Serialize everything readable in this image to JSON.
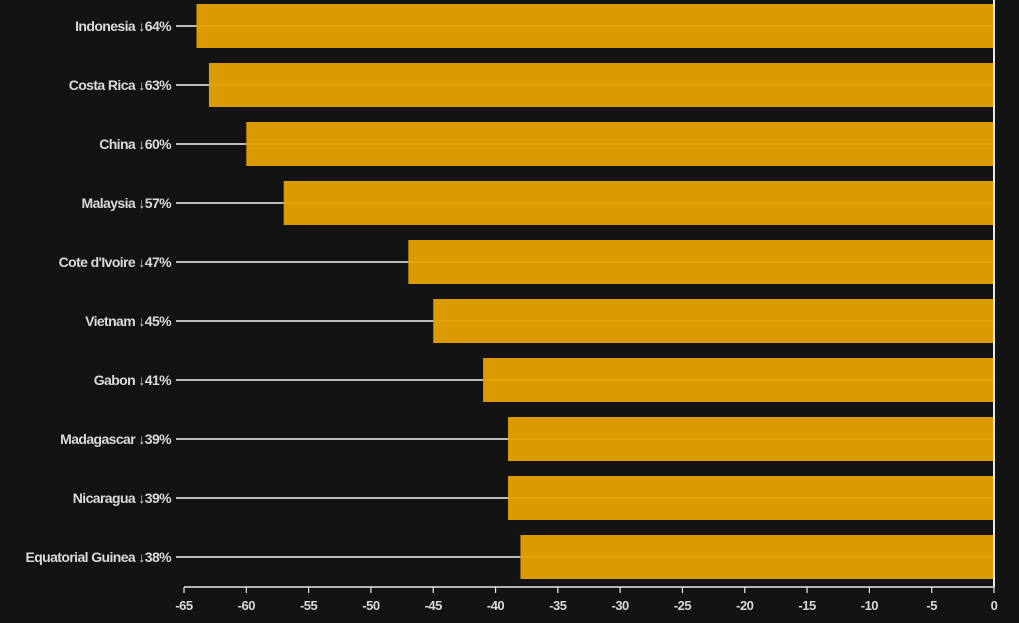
{
  "chart_data": {
    "type": "bar",
    "orientation": "horizontal",
    "categories": [
      "Indonesia ↓64%",
      "Costa Rica ↓63%",
      "China ↓60%",
      "Malaysia ↓57%",
      "Cote d'Ivoire ↓47%",
      "Vietnam ↓45%",
      "Gabon ↓41%",
      "Madagascar ↓39%",
      "Nicaragua ↓39%",
      "Equatorial Guinea ↓38%"
    ],
    "values": [
      -64,
      -63,
      -60,
      -57,
      -47,
      -45,
      -41,
      -39,
      -39,
      -38
    ],
    "xlim": [
      -65,
      0
    ],
    "xticks": [
      "-65",
      "-60",
      "-55",
      "-50",
      "-45",
      "-40",
      "-35",
      "-30",
      "-25",
      "-20",
      "-15",
      "-10",
      "-5",
      "0"
    ],
    "title": "",
    "xlabel": "",
    "ylabel": "",
    "grid": false,
    "legend": "none",
    "colors": {
      "background": "#131313",
      "bar": "#db9b00",
      "bar_highlight": "#f0b52a",
      "axis": "#e8e8e8",
      "leader_line": "#f2f2f2",
      "text": "#d9d9d9"
    }
  }
}
